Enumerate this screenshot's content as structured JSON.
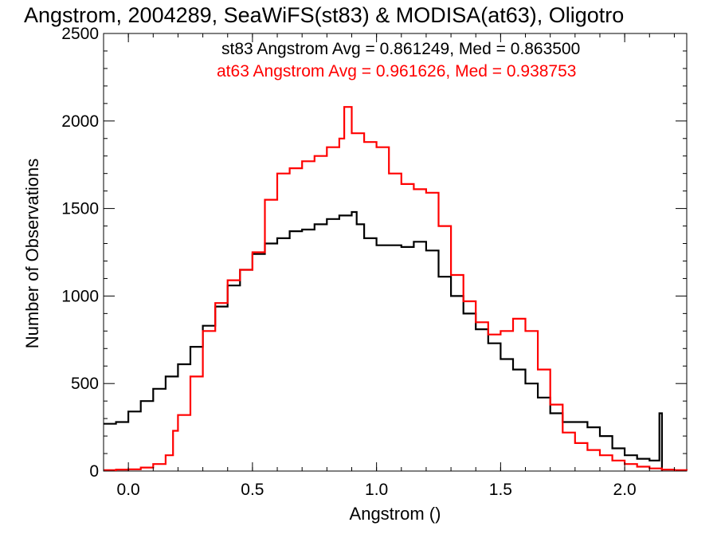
{
  "chart_data": {
    "type": "line",
    "title": "Angstrom, 2004289, SeaWiFS(st83) & MODISA(at63), Oligotro",
    "xlabel": "Angstrom ()",
    "ylabel": "Number of Observations",
    "xlim": [
      -0.1,
      2.25
    ],
    "ylim": [
      0,
      2500
    ],
    "x_ticks": [
      0.0,
      0.5,
      1.0,
      1.5,
      2.0
    ],
    "x_tick_labels": [
      "0.0",
      "0.5",
      "1.0",
      "1.5",
      "2.0"
    ],
    "y_ticks": [
      0,
      500,
      1000,
      1500,
      2000,
      2500
    ],
    "y_tick_labels": [
      "0",
      "500",
      "1000",
      "1500",
      "2000",
      "2500"
    ],
    "grid": false,
    "legend_position": "top-right",
    "annotations": [
      {
        "text": "st83 Angstrom Avg = 0.861249, Med = 0.863500",
        "color": "#000000"
      },
      {
        "text": "at63 Angstrom Avg = 0.961626, Med = 0.938753",
        "color": "#ff0000"
      }
    ],
    "series": [
      {
        "color": "#000000",
        "x": [
          -0.1,
          -0.05,
          0.0,
          0.05,
          0.1,
          0.15,
          0.2,
          0.25,
          0.3,
          0.35,
          0.4,
          0.45,
          0.5,
          0.55,
          0.6,
          0.65,
          0.7,
          0.75,
          0.8,
          0.85,
          0.9,
          0.92,
          0.95,
          1.0,
          1.05,
          1.1,
          1.15,
          1.2,
          1.25,
          1.3,
          1.35,
          1.4,
          1.45,
          1.5,
          1.55,
          1.6,
          1.65,
          1.7,
          1.75,
          1.8,
          1.85,
          1.9,
          1.95,
          2.0,
          2.05,
          2.1,
          2.14,
          2.15
        ],
        "values": [
          270,
          280,
          340,
          400,
          470,
          540,
          610,
          710,
          830,
          940,
          1060,
          1150,
          1240,
          1300,
          1330,
          1370,
          1380,
          1410,
          1440,
          1460,
          1480,
          1410,
          1330,
          1290,
          1290,
          1280,
          1310,
          1260,
          1110,
          1000,
          900,
          810,
          730,
          640,
          580,
          500,
          420,
          330,
          280,
          280,
          250,
          200,
          130,
          90,
          70,
          60,
          330,
          0
        ]
      },
      {
        "color": "#ff0000",
        "x": [
          -0.1,
          -0.05,
          0.0,
          0.05,
          0.1,
          0.15,
          0.18,
          0.2,
          0.25,
          0.3,
          0.35,
          0.4,
          0.45,
          0.5,
          0.55,
          0.6,
          0.65,
          0.7,
          0.75,
          0.8,
          0.85,
          0.87,
          0.9,
          0.95,
          1.0,
          1.05,
          1.1,
          1.15,
          1.2,
          1.25,
          1.3,
          1.35,
          1.4,
          1.45,
          1.5,
          1.55,
          1.6,
          1.65,
          1.7,
          1.75,
          1.8,
          1.85,
          1.9,
          1.95,
          2.0,
          2.05,
          2.1,
          2.15,
          2.2,
          2.25
        ],
        "values": [
          5,
          8,
          10,
          20,
          40,
          90,
          230,
          320,
          540,
          800,
          960,
          1090,
          1150,
          1250,
          1550,
          1700,
          1730,
          1770,
          1800,
          1850,
          1900,
          2080,
          1930,
          1880,
          1850,
          1700,
          1640,
          1610,
          1590,
          1400,
          1120,
          970,
          850,
          780,
          800,
          870,
          800,
          580,
          380,
          220,
          160,
          120,
          90,
          60,
          40,
          25,
          15,
          8,
          5,
          3
        ]
      }
    ]
  }
}
